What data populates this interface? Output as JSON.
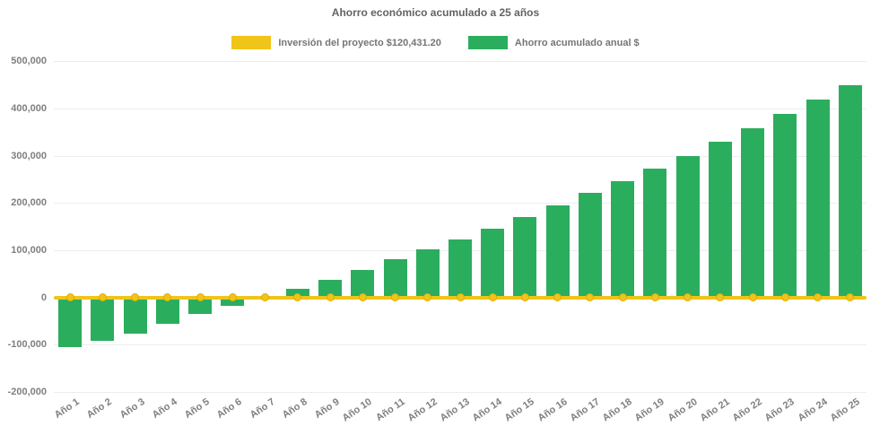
{
  "title": "Ahorro económico acumulado a 25 años",
  "legend": [
    {
      "label": "Inversión del proyecto $120,431.20",
      "color": "#f0c419"
    },
    {
      "label": "Ahorro acumulado anual $",
      "color": "#2bad5e"
    }
  ],
  "chart_data": {
    "type": "bar",
    "title": "Ahorro económico acumulado a 25 años",
    "categories": [
      "Año 1",
      "Año 2",
      "Año 3",
      "Año 4",
      "Año 5",
      "Año 6",
      "Año 7",
      "Año 8",
      "Año 9",
      "Año 10",
      "Año 11",
      "Año 12",
      "Año 13",
      "Año 14",
      "Año 15",
      "Año 16",
      "Año 17",
      "Año 18",
      "Año 19",
      "Año 20",
      "Año 21",
      "Año 22",
      "Año 23",
      "Año 24",
      "Año 25"
    ],
    "series": [
      {
        "name": "Inversión del proyecto $120,431.20",
        "type": "line",
        "color": "#f0c419",
        "marker": "circle",
        "values": [
          0,
          0,
          0,
          0,
          0,
          0,
          0,
          0,
          0,
          0,
          0,
          0,
          0,
          0,
          0,
          0,
          0,
          0,
          0,
          0,
          0,
          0,
          0,
          0,
          0
        ]
      },
      {
        "name": "Ahorro acumulado anual $",
        "type": "bar",
        "color": "#2bad5e",
        "values": [
          -105000,
          -91500,
          -76000,
          -56000,
          -35000,
          -18000,
          500,
          19000,
          38000,
          58000,
          81000,
          102000,
          123000,
          146000,
          171000,
          194000,
          222000,
          246000,
          273000,
          300000,
          329000,
          358000,
          388000,
          419000,
          450000
        ]
      }
    ],
    "xlabel": "",
    "ylabel": "",
    "ylim": [
      -200000,
      500000
    ],
    "ytick_step": 100000,
    "ytick_labels": [
      "500,000",
      "400,000",
      "300,000",
      "200,000",
      "100,000",
      "0",
      "-100,000",
      "-200,000"
    ],
    "grid": "horizontal-faint",
    "legend_position": "top-center",
    "investment_amount_shown_in_legend": "$120,431.20"
  }
}
